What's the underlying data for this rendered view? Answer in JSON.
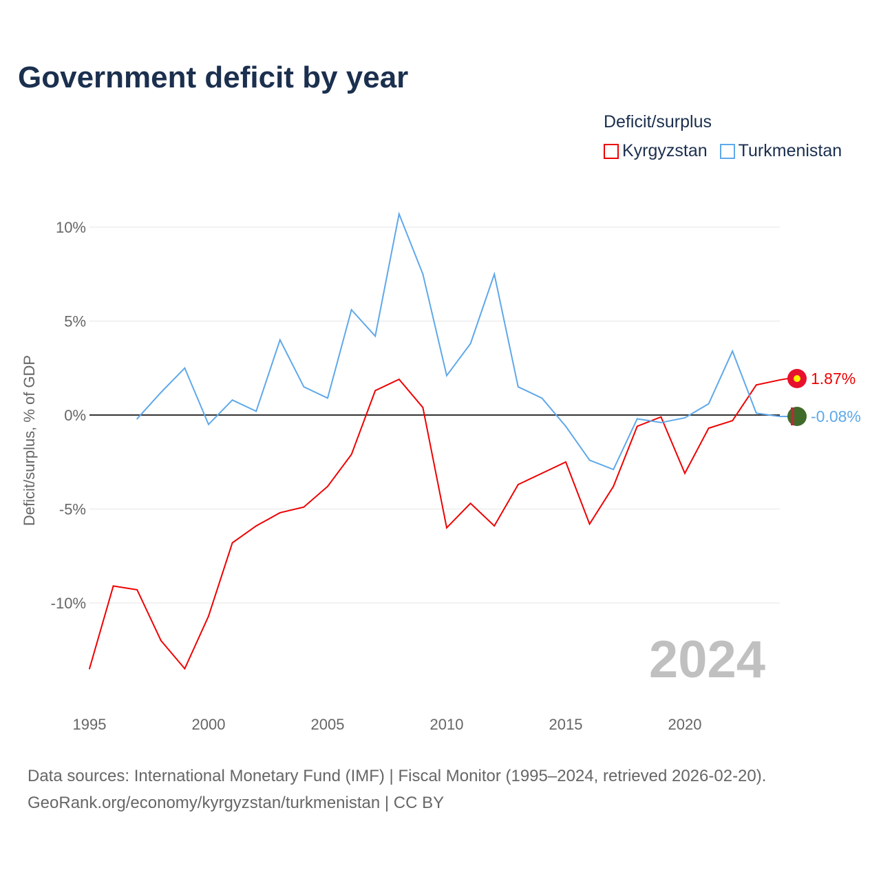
{
  "title": "Government deficit by year",
  "legend": {
    "title": "Deficit/surplus",
    "items": [
      {
        "label": "Kyrgyzstan",
        "color": "#ee0000"
      },
      {
        "label": "Turkmenistan",
        "color": "#5ea8ea"
      }
    ]
  },
  "footer": {
    "line1": "Data sources: International Monetary Fund (IMF) | Fiscal Monitor (1995–2024, retrieved 2026-02-20).",
    "line2": "GeoRank.org/economy/kyrgyzstan/turkmenistan | CC BY"
  },
  "chart_data": {
    "type": "line",
    "title": "Government deficit by year",
    "xlabel": "",
    "ylabel": "Deficit/surplus, % of GDP",
    "xlim": [
      1995,
      2024
    ],
    "ylim": [
      -13.5,
      10.7
    ],
    "xticks": [
      1995,
      2000,
      2005,
      2010,
      2015,
      2020
    ],
    "yticks": [
      {
        "v": 10,
        "label": "10%"
      },
      {
        "v": 5,
        "label": "5%"
      },
      {
        "v": 0,
        "label": "0%"
      },
      {
        "v": -5,
        "label": "-5%"
      },
      {
        "v": -10,
        "label": "-10%"
      }
    ],
    "year_watermark": "2024",
    "series": [
      {
        "name": "Kyrgyzstan",
        "color": "#ee0000",
        "end_label": "1.87%",
        "x": [
          1995,
          1996,
          1997,
          1998,
          1999,
          2000,
          2001,
          2002,
          2003,
          2004,
          2005,
          2006,
          2007,
          2008,
          2009,
          2010,
          2011,
          2012,
          2013,
          2014,
          2015,
          2016,
          2017,
          2018,
          2019,
          2020,
          2021,
          2022,
          2023,
          2024
        ],
        "y": [
          -13.5,
          -9.1,
          -9.3,
          -12.0,
          -13.5,
          -10.7,
          -6.8,
          -5.9,
          -5.2,
          -4.9,
          -3.8,
          -2.1,
          1.3,
          1.9,
          0.4,
          -6.0,
          -4.7,
          -5.9,
          -3.7,
          -3.1,
          -2.5,
          -5.8,
          -3.8,
          -0.6,
          -0.1,
          -3.1,
          -0.7,
          -0.3,
          1.6,
          1.87
        ]
      },
      {
        "name": "Turkmenistan",
        "color": "#5ea8ea",
        "end_label": "-0.08%",
        "x": [
          1997,
          1998,
          1999,
          2000,
          2001,
          2002,
          2003,
          2004,
          2005,
          2006,
          2007,
          2008,
          2009,
          2010,
          2011,
          2012,
          2013,
          2014,
          2015,
          2016,
          2017,
          2018,
          2019,
          2020,
          2021,
          2022,
          2023,
          2024
        ],
        "y": [
          -0.2,
          1.2,
          2.5,
          -0.5,
          0.8,
          0.2,
          4.0,
          1.5,
          0.9,
          5.6,
          4.2,
          10.7,
          7.5,
          2.1,
          3.8,
          7.5,
          1.5,
          0.9,
          -0.6,
          -2.4,
          -2.9,
          -0.2,
          -0.4,
          -0.15,
          0.6,
          3.4,
          0.1,
          -0.08
        ]
      }
    ]
  }
}
